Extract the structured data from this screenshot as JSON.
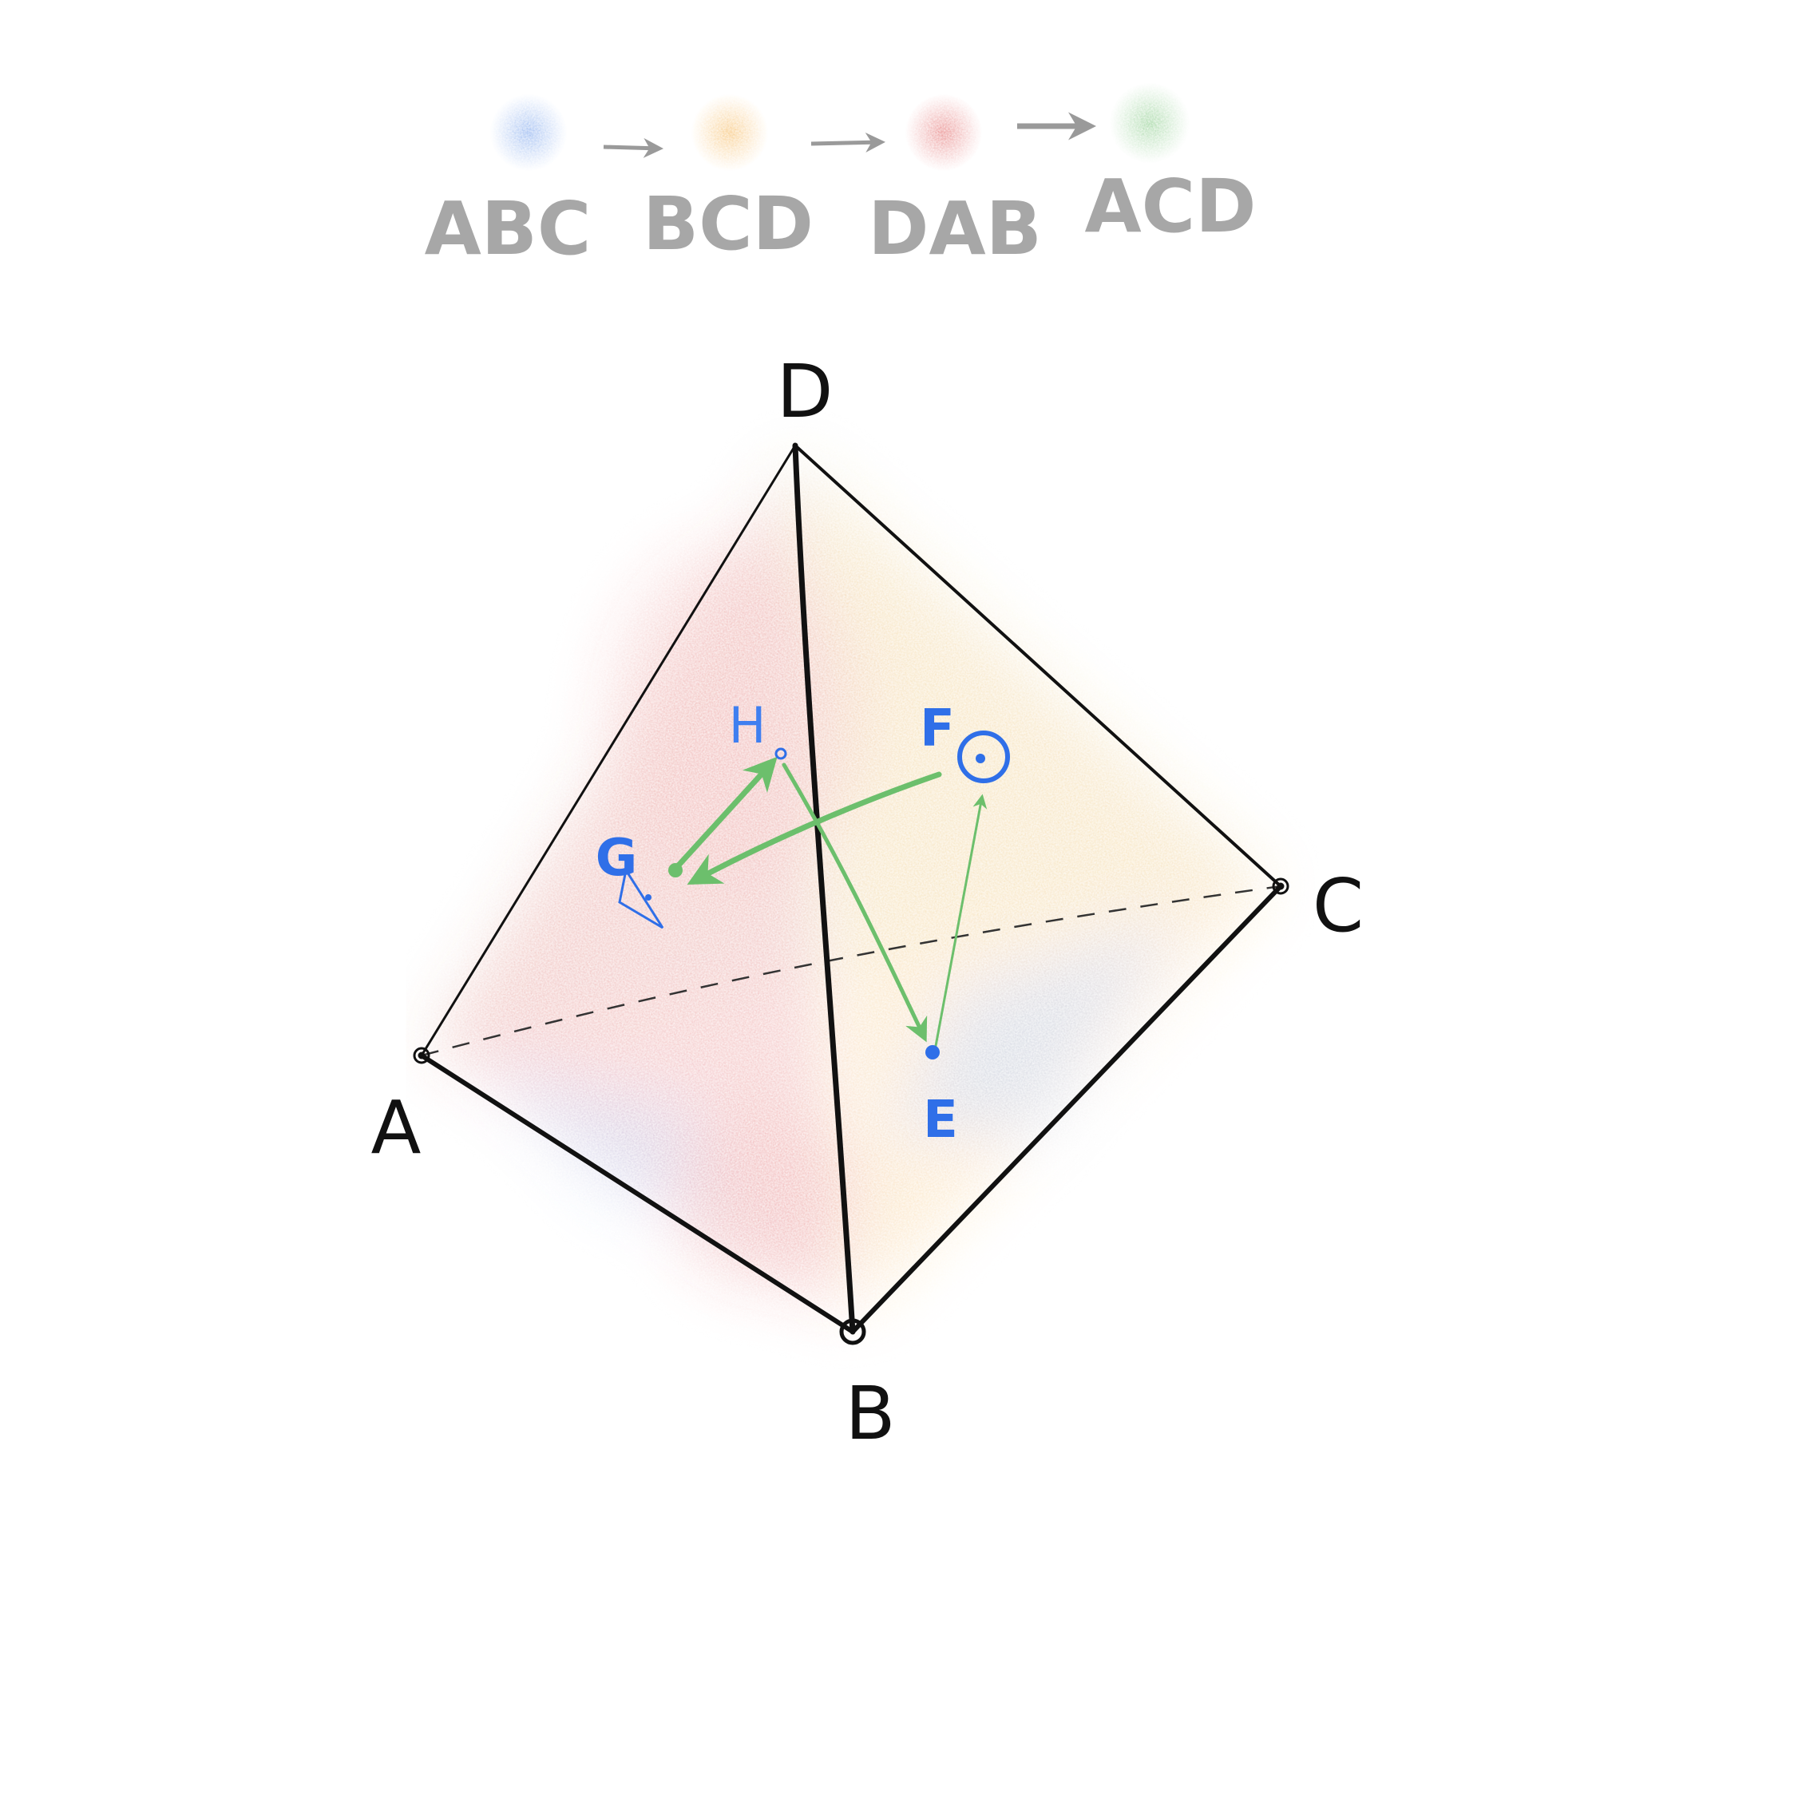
{
  "colors": {
    "ABC": "#5b8ee8",
    "BCD": "#f4a93a",
    "DAB": "#dc4a4a",
    "ACD": "#6cbf6c",
    "legend_text": "#a7a7a7",
    "edge": "#111111",
    "point": "#2f6fe8",
    "path": "#6cbf6c"
  },
  "legend": {
    "faces": [
      {
        "label": "ABC",
        "color": "#5b8ee8"
      },
      {
        "label": "BCD",
        "color": "#f4a93a"
      },
      {
        "label": "DAB",
        "color": "#dc4a4a"
      },
      {
        "label": "ACD",
        "color": "#6cbf6c"
      }
    ],
    "arrow_icon": "right-arrow-icon"
  },
  "vertices": {
    "A": "A",
    "B": "B",
    "C": "C",
    "D": "D"
  },
  "points": {
    "E": "E",
    "F": "F",
    "G": "G",
    "H": "H"
  },
  "point_icons": {
    "F": "circled-dot-icon",
    "G": "triangle-dot-icon",
    "H": "small-circle-icon",
    "E": "filled-dot-icon"
  },
  "path_order": [
    "H",
    "E",
    "F",
    "G",
    "H"
  ]
}
